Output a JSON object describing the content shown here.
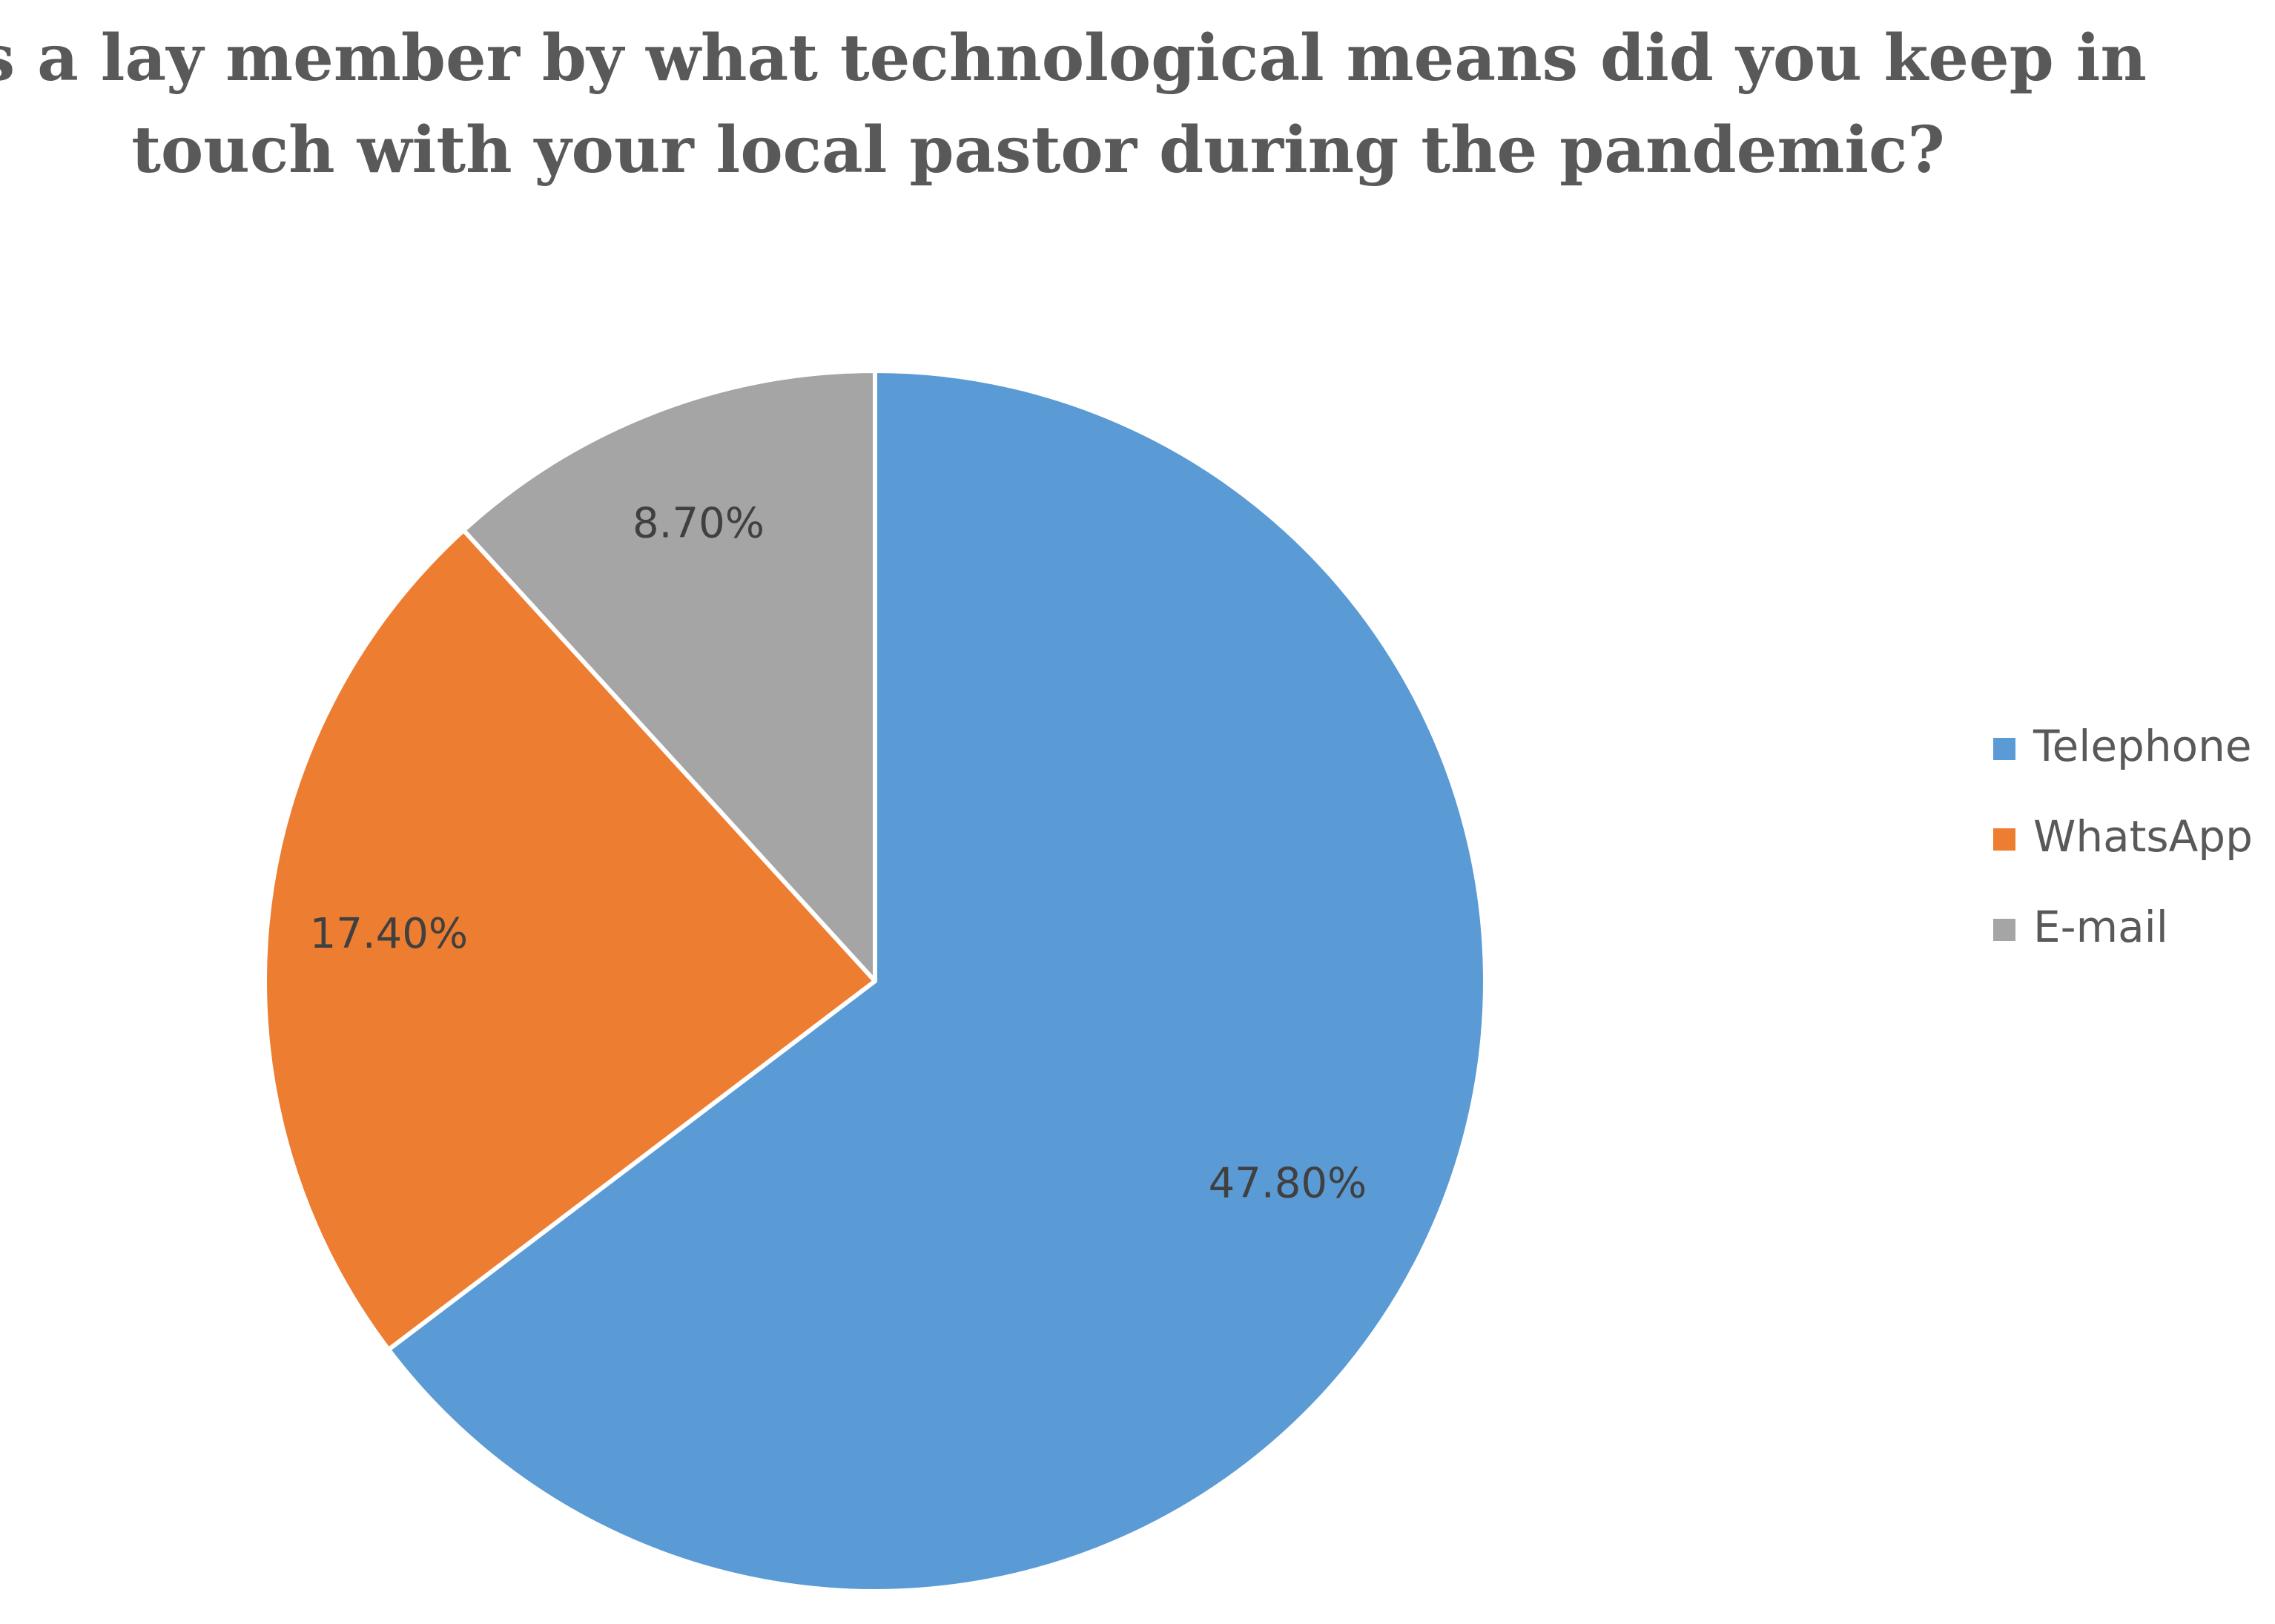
{
  "chart_data": {
    "type": "pie",
    "title_lines": [
      "As a lay member by what technological means did you keep in",
      "touch with your local pastor during the pandemic?"
    ],
    "categories": [
      "Telephone",
      "WhatsApp",
      "E-mail"
    ],
    "values": [
      47.8,
      17.4,
      8.7
    ],
    "data_labels": [
      "47.80%",
      "17.40%",
      "8.70%"
    ],
    "colors": [
      "#5B9BD5",
      "#ED7D31",
      "#A5A5A5"
    ],
    "start_angle_deg": 0,
    "direction": "clockwise",
    "legend_position": "right"
  }
}
